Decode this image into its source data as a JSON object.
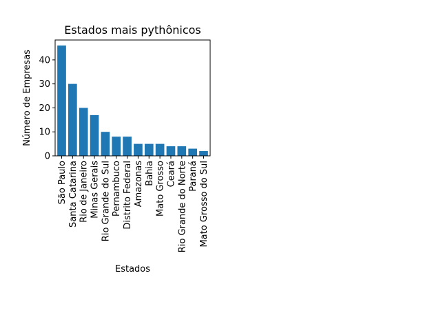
{
  "chart_data": {
    "type": "bar",
    "title": "Estados mais pythônicos",
    "xlabel": "Estados",
    "ylabel": "Número de Empresas",
    "categories": [
      "São Paulo",
      "Santa Catarina",
      "Rio de Janeiro",
      "Minas Gerais",
      "Rio Grande do Sul",
      "Pernambuco",
      "Distrito Federal",
      "Amazonas",
      "Bahia",
      "Mato Grosso",
      "Ceará",
      "Rio Grande do Norte",
      "Paraná",
      "Mato Grosso do Sul"
    ],
    "values": [
      46,
      30,
      20,
      17,
      10,
      8,
      8,
      5,
      5,
      5,
      4,
      4,
      3,
      2
    ],
    "ylim": [
      0,
      48.3
    ],
    "yticks": [
      0,
      10,
      20,
      30,
      40
    ],
    "grid": false,
    "bar_color": "#1f77b4"
  }
}
